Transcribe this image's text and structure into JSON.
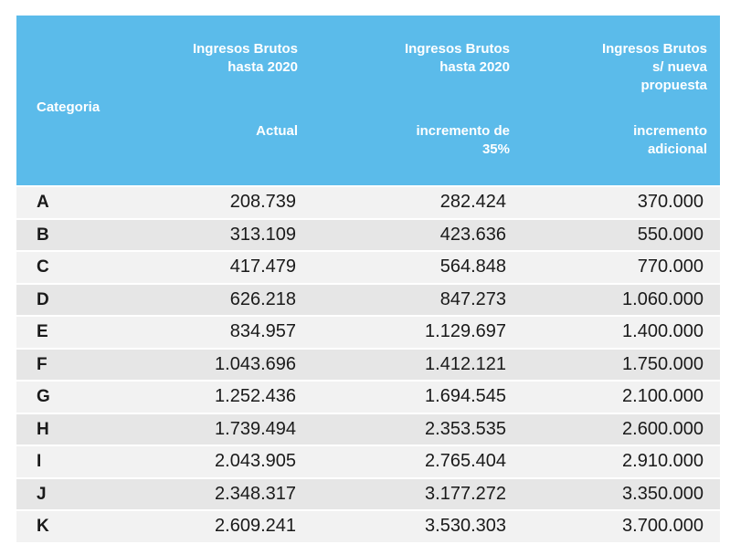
{
  "header": {
    "category": "Categoria",
    "col1_top": "Ingresos Brutos\nhasta 2020",
    "col1_bottom": "Actual",
    "col2_top": "Ingresos Brutos\nhasta 2020",
    "col2_bottom": "incremento de\n35%",
    "col3_top": "Ingresos Brutos\ns/ nueva\npropuesta",
    "col3_bottom": "incremento\nadicional"
  },
  "rows": [
    {
      "cat": "A",
      "actual": "208.739",
      "inc35": "282.424",
      "nueva": "370.000"
    },
    {
      "cat": "B",
      "actual": "313.109",
      "inc35": "423.636",
      "nueva": "550.000"
    },
    {
      "cat": "C",
      "actual": "417.479",
      "inc35": "564.848",
      "nueva": "770.000"
    },
    {
      "cat": "D",
      "actual": "626.218",
      "inc35": "847.273",
      "nueva": "1.060.000"
    },
    {
      "cat": "E",
      "actual": "834.957",
      "inc35": "1.129.697",
      "nueva": "1.400.000"
    },
    {
      "cat": "F",
      "actual": "1.043.696",
      "inc35": "1.412.121",
      "nueva": "1.750.000"
    },
    {
      "cat": "G",
      "actual": "1.252.436",
      "inc35": "1.694.545",
      "nueva": "2.100.000"
    },
    {
      "cat": "H",
      "actual": "1.739.494",
      "inc35": "2.353.535",
      "nueva": "2.600.000"
    },
    {
      "cat": "I",
      "actual": "2.043.905",
      "inc35": "2.765.404",
      "nueva": "2.910.000"
    },
    {
      "cat": "J",
      "actual": "2.348.317",
      "inc35": "3.177.272",
      "nueva": "3.350.000"
    },
    {
      "cat": "K",
      "actual": "2.609.241",
      "inc35": "3.530.303",
      "nueva": "3.700.000"
    }
  ]
}
